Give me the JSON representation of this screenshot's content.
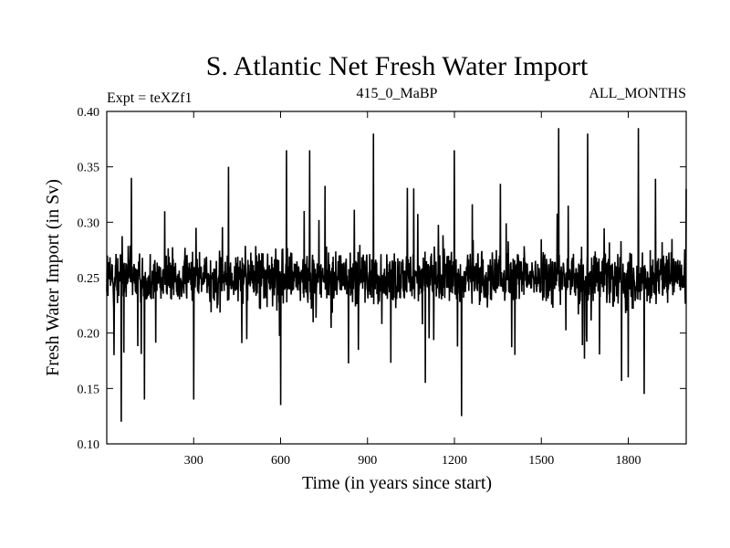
{
  "chart_data": {
    "type": "line",
    "title": "S. Atlantic Net Fresh Water Import",
    "subtitle_left": "Expt = teXZf1",
    "subtitle_center": "415_0_MaBP",
    "subtitle_right": "ALL_MONTHS",
    "xlabel": "Time (in years since start)",
    "ylabel": "Fresh Water Import (in Sv)",
    "xlim": [
      0,
      2000
    ],
    "ylim": [
      0.1,
      0.4
    ],
    "xticks": [
      300,
      600,
      900,
      1200,
      1500,
      1800
    ],
    "xtick_labels": [
      "300",
      "600",
      "900",
      "1200",
      "1500",
      "1800"
    ],
    "yticks": [
      0.1,
      0.15,
      0.2,
      0.25,
      0.3,
      0.35,
      0.4
    ],
    "ytick_labels": [
      "0.10",
      "0.15",
      "0.20",
      "0.25",
      "0.30",
      "0.35",
      "0.40"
    ],
    "series": [
      {
        "name": "S. Atlantic Net Fresh Water Import",
        "mean": 0.25,
        "n_points": 2000,
        "notable_points": [
          {
            "x": 2,
            "y": 0.27
          },
          {
            "x": 25,
            "y": 0.18
          },
          {
            "x": 50,
            "y": 0.12
          },
          {
            "x": 85,
            "y": 0.34
          },
          {
            "x": 130,
            "y": 0.14
          },
          {
            "x": 200,
            "y": 0.31
          },
          {
            "x": 300,
            "y": 0.14
          },
          {
            "x": 420,
            "y": 0.35
          },
          {
            "x": 600,
            "y": 0.135
          },
          {
            "x": 620,
            "y": 0.365
          },
          {
            "x": 700,
            "y": 0.365
          },
          {
            "x": 920,
            "y": 0.38
          },
          {
            "x": 1100,
            "y": 0.155
          },
          {
            "x": 1200,
            "y": 0.365
          },
          {
            "x": 1225,
            "y": 0.125
          },
          {
            "x": 1560,
            "y": 0.385
          },
          {
            "x": 1660,
            "y": 0.38
          },
          {
            "x": 1800,
            "y": 0.16
          },
          {
            "x": 1835,
            "y": 0.385
          },
          {
            "x": 1855,
            "y": 0.145
          },
          {
            "x": 2000,
            "y": 0.33
          }
        ]
      }
    ]
  }
}
